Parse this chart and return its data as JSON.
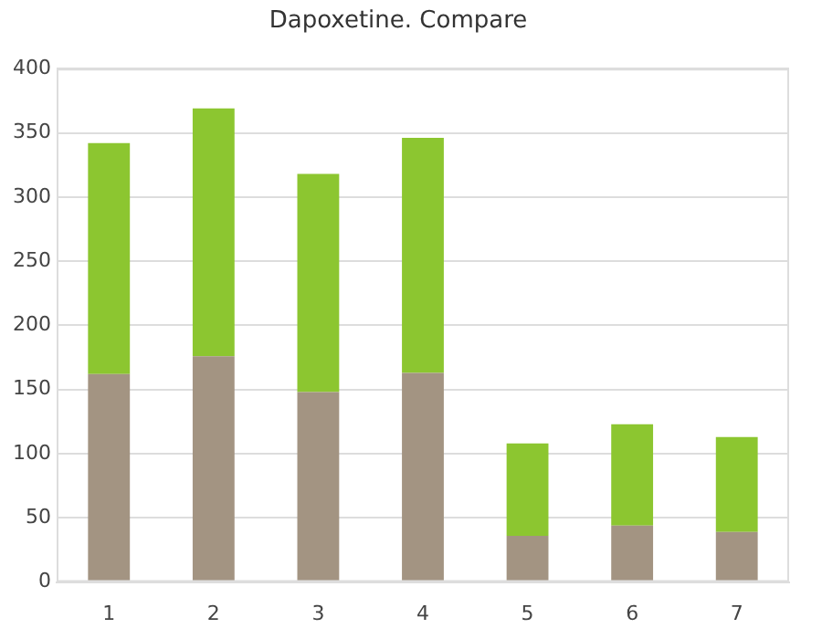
{
  "chart_data": {
    "type": "bar",
    "title": "Dapoxetine. Compare",
    "stacked": true,
    "categories": [
      "1",
      "2",
      "3",
      "4",
      "5",
      "6",
      "7"
    ],
    "series": [
      {
        "color": "#a39482",
        "values": [
          162,
          176,
          148,
          163,
          36,
          44,
          39
        ]
      },
      {
        "color": "#8cc630",
        "values": [
          180,
          193,
          170,
          183,
          72,
          79,
          74
        ]
      }
    ],
    "ylim": [
      0,
      400
    ],
    "yticks": [
      0,
      50,
      100,
      150,
      200,
      250,
      300,
      350,
      400
    ],
    "grid": "y"
  }
}
